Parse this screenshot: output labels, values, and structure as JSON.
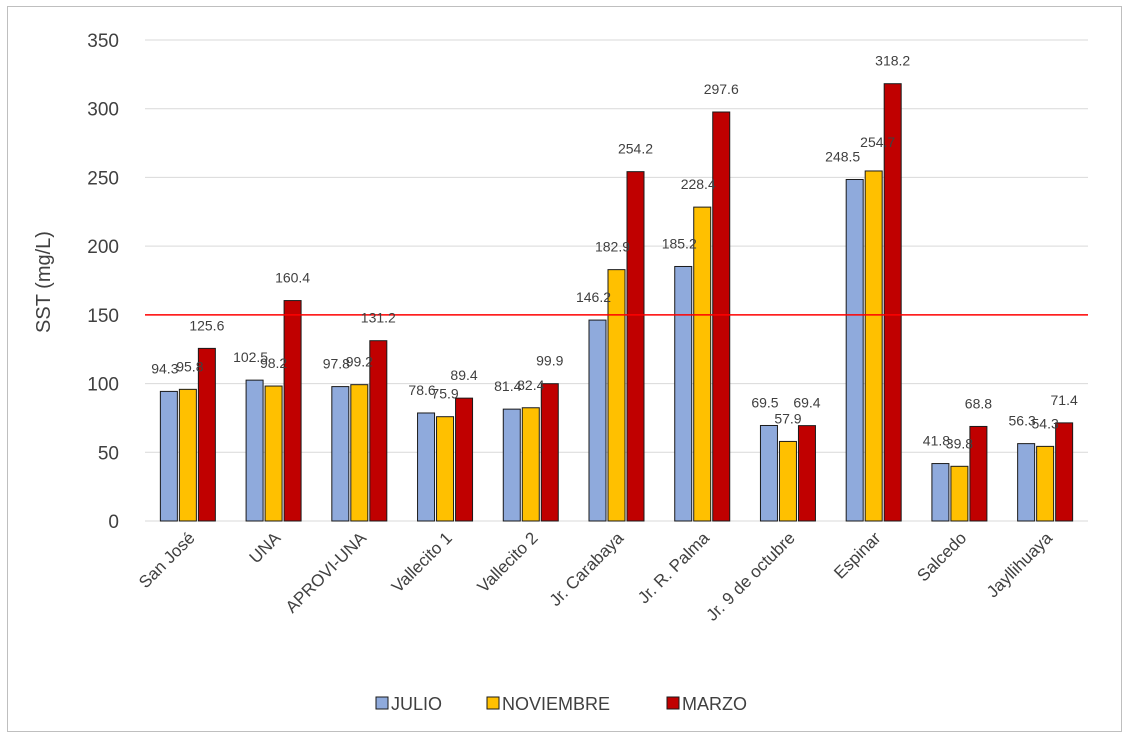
{
  "chart_data": {
    "type": "bar",
    "title": "",
    "xlabel": "",
    "ylabel": "SST (mg/L)",
    "ylim": [
      0,
      350
    ],
    "yticks": [
      0,
      50,
      100,
      150,
      200,
      250,
      300,
      350
    ],
    "grid": true,
    "legend": "bottom",
    "reference_line": {
      "y": 150,
      "color": "#ff0000"
    },
    "categories": [
      "San José",
      "UNA",
      "APROVI-UNA",
      "Vallecito 1",
      "Vallecito 2",
      "Jr. Carabaya",
      "Jr. R. Palma",
      "Jr. 9 de octubre",
      "Espinar",
      "Salcedo",
      "Jayllihuaya"
    ],
    "series": [
      {
        "name": "JULIO",
        "color": "#8faadc",
        "values": [
          94.3,
          102.5,
          97.8,
          78.6,
          81.4,
          146.2,
          185.2,
          69.5,
          248.5,
          41.8,
          56.3
        ]
      },
      {
        "name": "NOVIEMBRE",
        "color": "#ffc000",
        "values": [
          95.8,
          98.2,
          99.2,
          75.9,
          82.4,
          182.9,
          228.4,
          57.9,
          254.7,
          39.8,
          54.3
        ]
      },
      {
        "name": "MARZO",
        "color": "#c00000",
        "values": [
          125.6,
          160.4,
          131.2,
          89.4,
          99.9,
          254.2,
          297.6,
          69.4,
          318.2,
          68.8,
          71.4
        ]
      }
    ]
  }
}
